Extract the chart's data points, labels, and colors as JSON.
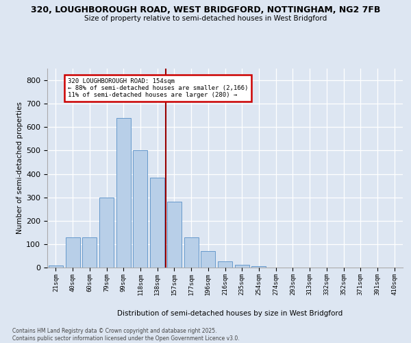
{
  "title1": "320, LOUGHBOROUGH ROAD, WEST BRIDGFORD, NOTTINGHAM, NG2 7FB",
  "title2": "Size of property relative to semi-detached houses in West Bridgford",
  "xlabel": "Distribution of semi-detached houses by size in West Bridgford",
  "ylabel": "Number of semi-detached properties",
  "bins": [
    "21sqm",
    "40sqm",
    "60sqm",
    "79sqm",
    "99sqm",
    "118sqm",
    "138sqm",
    "157sqm",
    "177sqm",
    "196sqm",
    "216sqm",
    "235sqm",
    "254sqm",
    "274sqm",
    "293sqm",
    "313sqm",
    "332sqm",
    "352sqm",
    "371sqm",
    "391sqm",
    "410sqm"
  ],
  "values": [
    10,
    128,
    128,
    300,
    638,
    500,
    383,
    280,
    128,
    70,
    25,
    12,
    5,
    0,
    0,
    0,
    0,
    0,
    0,
    0,
    0
  ],
  "bar_color": "#b8cfe8",
  "bar_edge_color": "#6699cc",
  "vline_color": "#990000",
  "vline_x": 7,
  "annotation_title": "320 LOUGHBOROUGH ROAD: 154sqm",
  "annotation_line1": "← 88% of semi-detached houses are smaller (2,166)",
  "annotation_line2": "11% of semi-detached houses are larger (280) →",
  "annotation_box_facecolor": "#ffffff",
  "annotation_box_edgecolor": "#cc0000",
  "background_color": "#dde6f2",
  "footer1": "Contains HM Land Registry data © Crown copyright and database right 2025.",
  "footer2": "Contains public sector information licensed under the Open Government Licence v3.0.",
  "ylim": [
    0,
    850
  ],
  "yticks": [
    0,
    100,
    200,
    300,
    400,
    500,
    600,
    700,
    800
  ]
}
